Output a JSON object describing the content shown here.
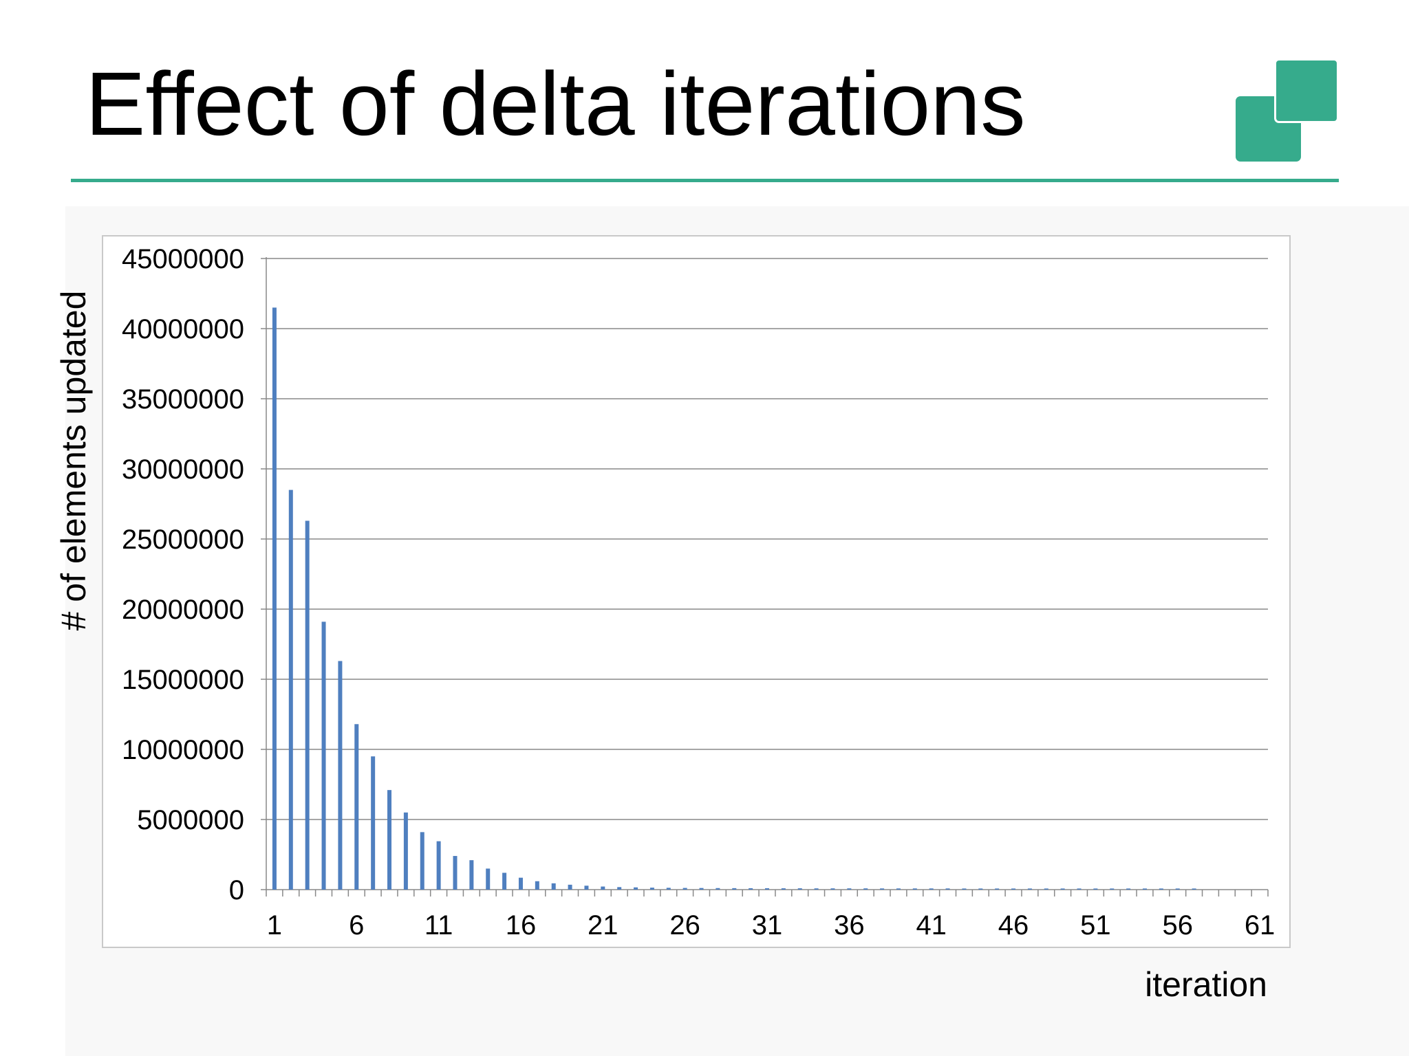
{
  "slide": {
    "title": "Effect of delta iterations",
    "accent_color": "#36ab8c",
    "logo_icon": "two-overlapping-squares-logo"
  },
  "chart_data": {
    "type": "bar",
    "xlabel": "iteration",
    "ylabel": "# of elements updated",
    "ylim": [
      0,
      45000000
    ],
    "y_ticks": [
      "0",
      "5000000",
      "10000000",
      "15000000",
      "20000000",
      "25000000",
      "30000000",
      "35000000",
      "40000000",
      "45000000"
    ],
    "x_tick_labels": [
      "1",
      "6",
      "11",
      "16",
      "21",
      "26",
      "31",
      "36",
      "41",
      "46",
      "51",
      "56",
      "61"
    ],
    "categories": [
      1,
      2,
      3,
      4,
      5,
      6,
      7,
      8,
      9,
      10,
      11,
      12,
      13,
      14,
      15,
      16,
      17,
      18,
      19,
      20,
      21,
      22,
      23,
      24,
      25,
      26,
      27,
      28,
      29,
      30,
      31,
      32,
      33,
      34,
      35,
      36,
      37,
      38,
      39,
      40,
      41,
      42,
      43,
      44,
      45,
      46,
      47,
      48,
      49,
      50,
      51,
      52,
      53,
      54,
      55,
      56,
      57,
      58,
      59,
      60,
      61
    ],
    "values": [
      41500000,
      28500000,
      26300000,
      19100000,
      16300000,
      11800000,
      9500000,
      7100000,
      5500000,
      4100000,
      3450000,
      2400000,
      2100000,
      1500000,
      1200000,
      850000,
      600000,
      450000,
      350000,
      280000,
      220000,
      180000,
      160000,
      140000,
      130000,
      120000,
      115000,
      110000,
      105000,
      100000,
      100000,
      95000,
      95000,
      90000,
      90000,
      90000,
      90000,
      85000,
      85000,
      85000,
      85000,
      85000,
      80000,
      80000,
      80000,
      80000,
      80000,
      80000,
      80000,
      80000,
      80000,
      80000,
      80000,
      80000,
      80000,
      80000,
      80000,
      0,
      0,
      0,
      0
    ],
    "bar_color": "#4f7fbf",
    "gridlines": true,
    "gridline_color": "#888888",
    "legend": false
  }
}
